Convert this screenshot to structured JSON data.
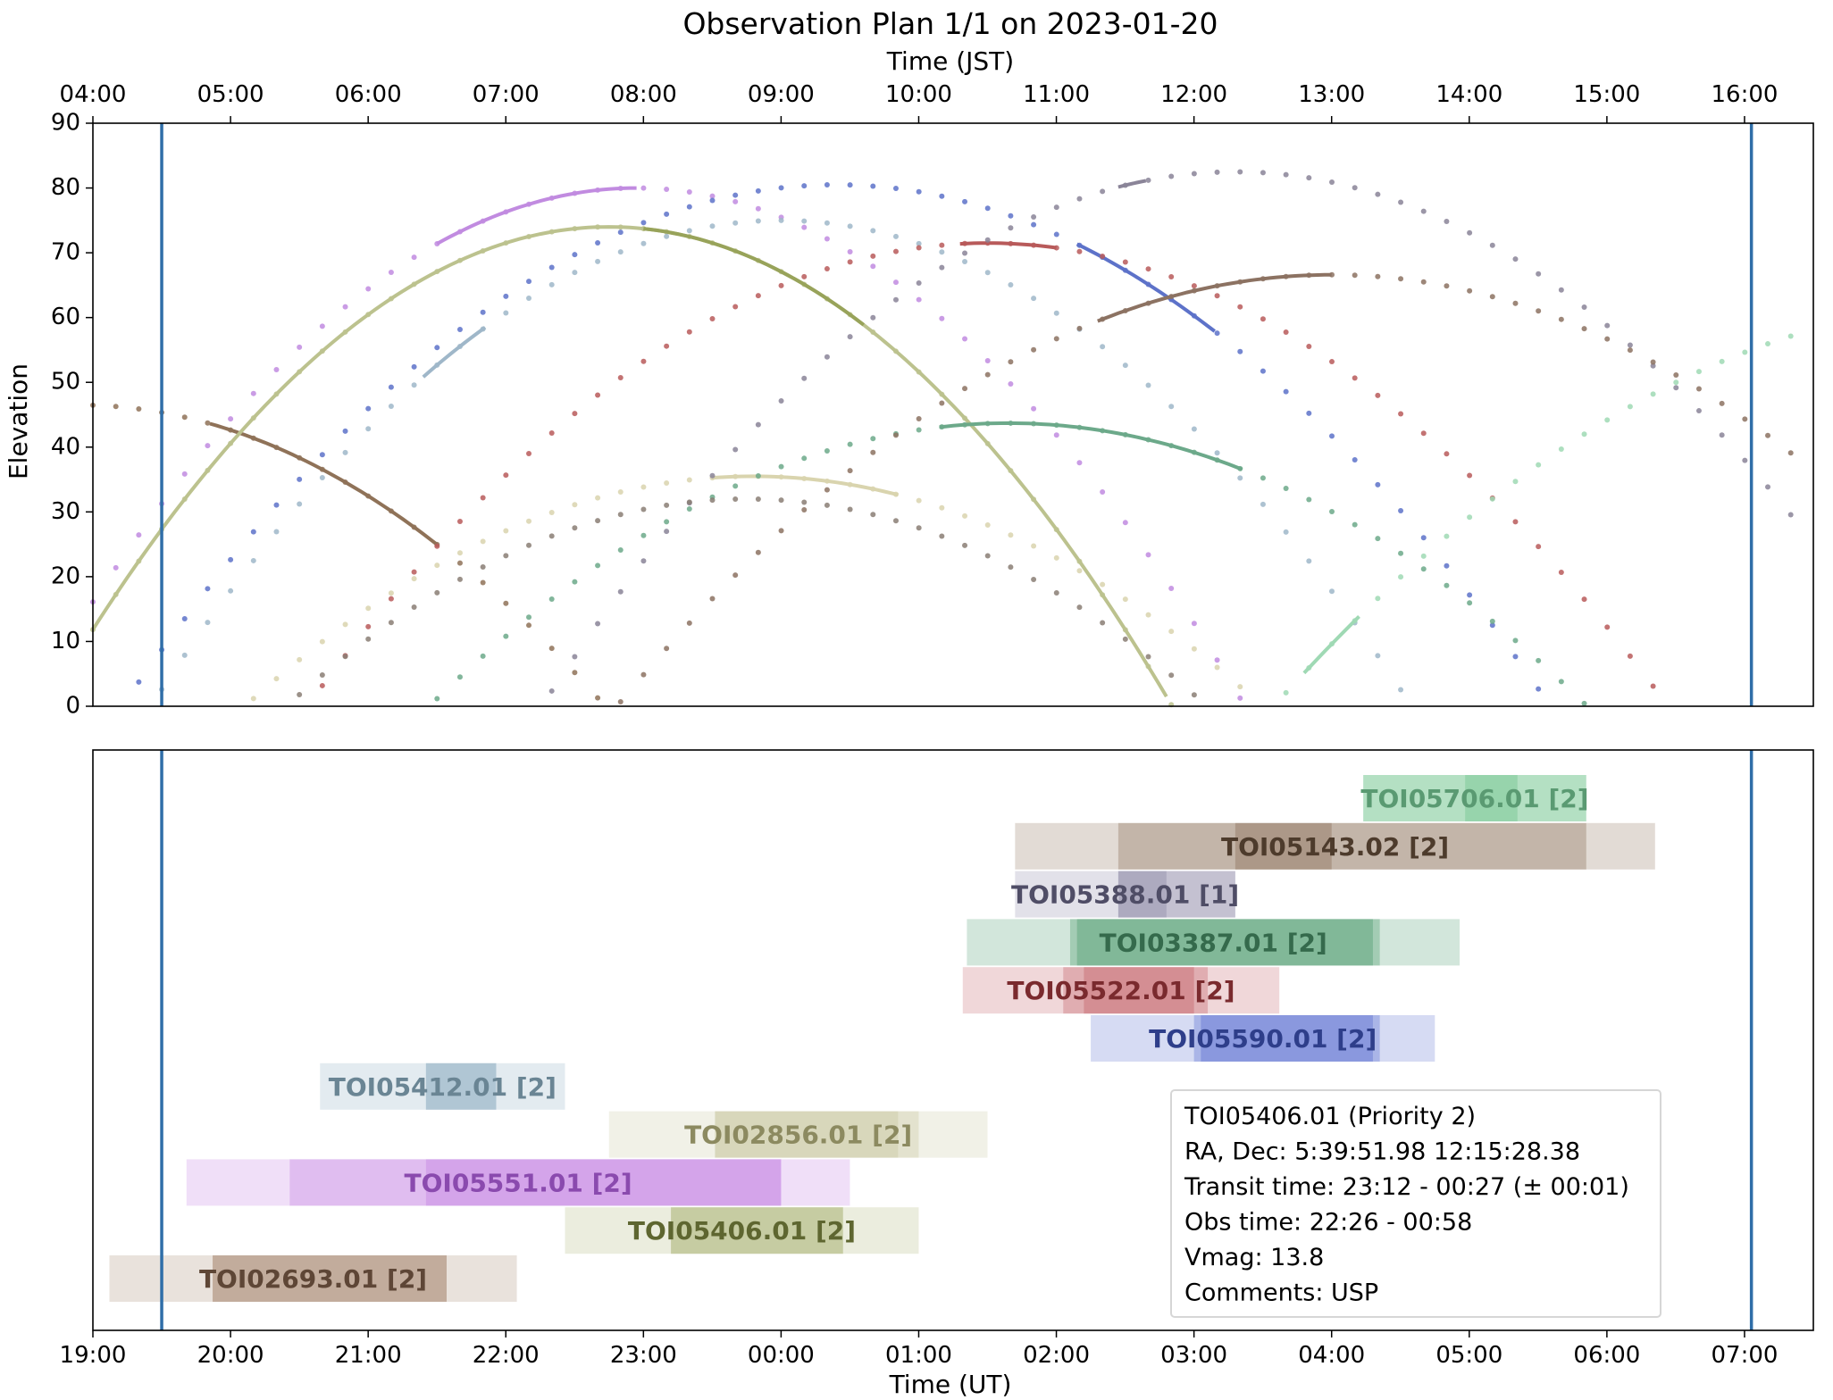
{
  "chart_data": [
    {
      "type": "line",
      "title": "Observation Plan 1/1 on 2023-01-20",
      "top_axis_label": "Time (JST)",
      "ylabel": "Elevation",
      "ylim": [
        0,
        90
      ],
      "xlim_ut_hours": [
        19.0,
        31.5
      ],
      "top_ticks": [
        "04:00",
        "05:00",
        "06:00",
        "07:00",
        "08:00",
        "09:00",
        "10:00",
        "11:00",
        "12:00",
        "13:00",
        "14:00",
        "15:00",
        "16:00"
      ],
      "y_ticks": [
        "0",
        "10",
        "20",
        "30",
        "40",
        "50",
        "60",
        "70",
        "80",
        "90"
      ],
      "night_markers_ut": [
        19.5,
        31.05
      ],
      "marker_color": "#2f6ea8",
      "series": [
        {
          "name": "TOI02693.01",
          "color": "#8f7258",
          "peak": 46.5,
          "transit": 18.9,
          "k": 0.49,
          "solid": [
            19.85,
            21.5
          ]
        },
        {
          "name": "TOI05406.01",
          "color": "#bcc28e",
          "peak": 74.0,
          "transit": 22.75,
          "k": 0.68,
          "solid": [
            19.0,
            27.0
          ],
          "dark": [
            23.0,
            24.6
          ]
        },
        {
          "name": "TOI05551.01",
          "color": "#c18be0",
          "peak": 80.0,
          "transit": 22.95,
          "k": 0.63,
          "solid": [
            21.5,
            22.95
          ]
        },
        {
          "name": "TOI05412.01",
          "color": "#9fb7c9",
          "peak": 75.0,
          "transit": 24.0,
          "k": 0.55,
          "solid": [
            21.4,
            21.85
          ]
        },
        {
          "name": "TOI02856.01",
          "color": "#d9d4ae",
          "peak": 35.5,
          "transit": 23.8,
          "k": 0.4,
          "solid": [
            23.5,
            24.85
          ]
        },
        {
          "name": "TOI05590.01",
          "color": "#5d72c9",
          "peak": 80.5,
          "transit": 24.4,
          "k": 0.46,
          "solid": [
            26.15,
            27.15
          ]
        },
        {
          "name": "TOI05522.01",
          "color": "#b85a5a",
          "peak": 71.5,
          "transit": 25.5,
          "k": 0.45,
          "solid": [
            25.3,
            26.0
          ]
        },
        {
          "name": "TOI03387.01",
          "color": "#6ca98a",
          "peak": 43.7,
          "transit": 25.65,
          "k": 0.38,
          "solid": [
            25.15,
            27.35
          ]
        },
        {
          "name": "TOI05388.01",
          "color": "#8a8498",
          "peak": 82.5,
          "transit": 27.3,
          "k": 0.5,
          "solid": [
            26.45,
            26.65
          ]
        },
        {
          "name": "TOI05143.02",
          "color": "#8c7262",
          "peak": 66.6,
          "transit": 28.0,
          "k": 0.38,
          "solid": [
            26.3,
            28.0
          ]
        },
        {
          "name": "TOI05706.01",
          "color": "#9fd9b4",
          "peak": 62.0,
          "transit": 32.8,
          "k": 0.35,
          "solid": [
            27.8,
            28.2
          ]
        },
        {
          "name": "TOI05412.01-b",
          "color": "#8a7e74",
          "peak": 32.0,
          "transit": 23.75,
          "k": 0.44
        }
      ]
    },
    {
      "type": "gantt",
      "xlabel": "Time (UT)",
      "x_ticks": [
        "19:00",
        "20:00",
        "21:00",
        "22:00",
        "23:00",
        "00:00",
        "01:00",
        "02:00",
        "03:00",
        "04:00",
        "05:00",
        "06:00",
        "07:00"
      ],
      "night_markers_ut": [
        19.5,
        31.05
      ],
      "rows": [
        {
          "label": "TOI05706.01 [2]",
          "color": "#6cc28a",
          "text_color": "#5a9a72",
          "outer": [
            28.23,
            29.85
          ],
          "mid": [
            28.23,
            29.85
          ],
          "inner": [
            28.97,
            29.35
          ]
        },
        {
          "label": "TOI05143.02 [2]",
          "color": "#8a6f58",
          "text_color": "#4d3b2c",
          "outer": [
            25.7,
            30.35
          ],
          "mid": [
            26.45,
            29.85
          ],
          "inner": [
            27.3,
            28.0
          ]
        },
        {
          "label": "TOI05388.01 [1]",
          "color": "#8c87a6",
          "text_color": "#4f4d66",
          "outer": [
            25.7,
            27.3
          ],
          "mid": [
            26.45,
            27.3
          ],
          "inner": [
            26.45,
            26.8
          ]
        },
        {
          "label": "TOI03387.01 [2]",
          "color": "#4d9a6e",
          "text_color": "#356a4c",
          "outer": [
            25.35,
            28.93
          ],
          "mid": [
            26.1,
            28.35
          ],
          "inner": [
            26.15,
            28.3
          ]
        },
        {
          "label": "TOI05522.01 [2]",
          "color": "#c25e66",
          "text_color": "#7a2a2e",
          "outer": [
            25.32,
            27.62
          ],
          "mid": [
            26.05,
            27.1
          ],
          "inner": [
            26.2,
            27.0
          ]
        },
        {
          "label": "TOI05590.01 [2]",
          "color": "#5a6fd1",
          "text_color": "#2e3e8a",
          "outer": [
            26.25,
            28.75
          ],
          "mid": [
            27.0,
            28.35
          ],
          "inner": [
            27.05,
            28.3
          ]
        },
        {
          "label": "TOI05412.01 [2]",
          "color": "#8fb0c2",
          "text_color": "#6a8594",
          "outer": [
            20.65,
            22.43
          ],
          "mid": [
            21.42,
            21.93
          ],
          "inner": [
            21.42,
            21.93
          ]
        },
        {
          "label": "TOI02856.01 [2]",
          "color": "#c9c7a0",
          "text_color": "#8c8a60",
          "outer": [
            22.75,
            25.5
          ],
          "mid": [
            23.52,
            25.0
          ],
          "inner": [
            23.52,
            24.85
          ]
        },
        {
          "label": "TOI05551.01 [2]",
          "color": "#c27fe2",
          "text_color": "#8a4aae",
          "outer": [
            19.68,
            24.5
          ],
          "mid": [
            20.43,
            24.0
          ],
          "inner": [
            21.42,
            24.0
          ]
        },
        {
          "label": "TOI05406.01 [2]",
          "color": "#aeb67c",
          "text_color": "#5e6630",
          "outer": [
            22.43,
            25.0
          ],
          "mid": [
            23.2,
            24.45
          ],
          "inner": [
            23.2,
            24.45
          ]
        },
        {
          "label": "TOI02693.01 [2]",
          "color": "#a98a74",
          "text_color": "#5e4636",
          "outer": [
            19.12,
            22.08
          ],
          "mid": [
            19.87,
            21.57
          ],
          "inner": [
            19.87,
            21.57
          ]
        }
      ],
      "info_box": [
        "TOI05406.01 (Priority 2)",
        "RA, Dec: 5:39:51.98 12:15:28.38",
        "Transit time: 23:12 - 00:27 (± 00:01)",
        "Obs time: 22:26 - 00:58",
        "Vmag: 13.8",
        "Comments: USP"
      ]
    }
  ]
}
